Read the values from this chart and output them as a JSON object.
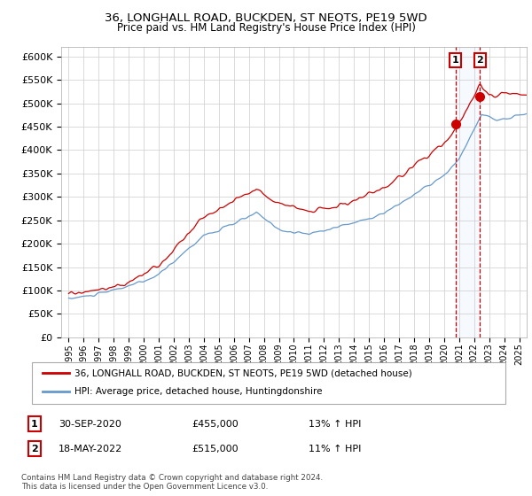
{
  "title": "36, LONGHALL ROAD, BUCKDEN, ST NEOTS, PE19 5WD",
  "subtitle": "Price paid vs. HM Land Registry's House Price Index (HPI)",
  "ylim": [
    0,
    620000
  ],
  "yticks": [
    0,
    50000,
    100000,
    150000,
    200000,
    250000,
    300000,
    350000,
    400000,
    450000,
    500000,
    550000,
    600000
  ],
  "xmin": 1994.5,
  "xmax": 2025.5,
  "xticks": [
    1995,
    1996,
    1997,
    1998,
    1999,
    2000,
    2001,
    2002,
    2003,
    2004,
    2005,
    2006,
    2007,
    2008,
    2009,
    2010,
    2011,
    2012,
    2013,
    2014,
    2015,
    2016,
    2017,
    2018,
    2019,
    2020,
    2021,
    2022,
    2023,
    2024,
    2025
  ],
  "legend_line1": "36, LONGHALL ROAD, BUCKDEN, ST NEOTS, PE19 5WD (detached house)",
  "legend_line2": "HPI: Average price, detached house, Huntingdonshire",
  "annotation1_label": "1",
  "annotation1_date": "30-SEP-2020",
  "annotation1_price": "£455,000",
  "annotation1_hpi": "13% ↑ HPI",
  "annotation2_label": "2",
  "annotation2_date": "18-MAY-2022",
  "annotation2_price": "£515,000",
  "annotation2_hpi": "11% ↑ HPI",
  "copyright": "Contains HM Land Registry data © Crown copyright and database right 2024.\nThis data is licensed under the Open Government Licence v3.0.",
  "line1_color": "#cc0000",
  "line2_color": "#6699cc",
  "point1_x": 2020.75,
  "point1_y": 455000,
  "point2_x": 2022.38,
  "point2_y": 515000,
  "vline_color": "#cc0000",
  "shade_color": "#ddeeff",
  "background_color": "#ffffff",
  "grid_color": "#cccccc"
}
